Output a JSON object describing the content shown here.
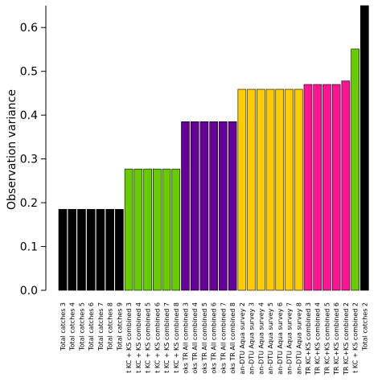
{
  "chart_data": {
    "type": "bar",
    "title": "",
    "xlabel": "",
    "ylabel": "Observation variance",
    "ylim": [
      0,
      0.65
    ],
    "yticks": [
      "0.0",
      "0.1",
      "0.2",
      "0.3",
      "0.4",
      "0.5",
      "0.6"
    ],
    "grid": false,
    "legend": "none",
    "categories": [
      "Total catches 3",
      "Total catches 4",
      "Total catches 5",
      "Total catches 6",
      "Total catches 7",
      "Total catches 8",
      "Total catches 9",
      "t KC + KS combined 3",
      "t KC + KS combined 4",
      "t KC + KS combined 5",
      "t KC + KS combined 6",
      "t KC + KS combined 7",
      "t KC + KS combined 8",
      "oks TR All combined 3",
      "oks TR All combined 4",
      "oks TR All combined 5",
      "oks TR All combined 6",
      "oks TR All combined 7",
      "oks TR All combined 8",
      "an-DTU Aqua survey 2",
      "an-DTU Aqua survey 3",
      "an-DTU Aqua survey 4",
      "an-DTU Aqua survey 5",
      "an-DTU Aqua survey 6",
      "an-DTU Aqua survey 7",
      "an-DTU Aqua survey 8",
      "TR KC+KS combined 3",
      "TR KC+KS combined 4",
      "TR KC+KS combined 5",
      "TR KC+KS combined 6",
      "TR KC+KS combined 2",
      "t KC + KS combined 2",
      "Total catches 2"
    ],
    "values": [
      0.185,
      0.185,
      0.185,
      0.185,
      0.185,
      0.185,
      0.185,
      0.277,
      0.277,
      0.277,
      0.277,
      0.277,
      0.277,
      0.385,
      0.385,
      0.385,
      0.385,
      0.385,
      0.385,
      0.459,
      0.459,
      0.459,
      0.459,
      0.459,
      0.459,
      0.459,
      0.47,
      0.47,
      0.47,
      0.47,
      0.478,
      0.551,
      0.65
    ],
    "colors": [
      "#000000",
      "#000000",
      "#000000",
      "#000000",
      "#000000",
      "#000000",
      "#000000",
      "#66cc00",
      "#66cc00",
      "#66cc00",
      "#66cc00",
      "#66cc00",
      "#66cc00",
      "#660099",
      "#660099",
      "#660099",
      "#660099",
      "#660099",
      "#660099",
      "#ffcc00",
      "#ffcc00",
      "#ffcc00",
      "#ffcc00",
      "#ffcc00",
      "#ffcc00",
      "#ffcc00",
      "#ff1493",
      "#ff1493",
      "#ff1493",
      "#ff1493",
      "#ff1493",
      "#66cc00",
      "#000000"
    ]
  }
}
